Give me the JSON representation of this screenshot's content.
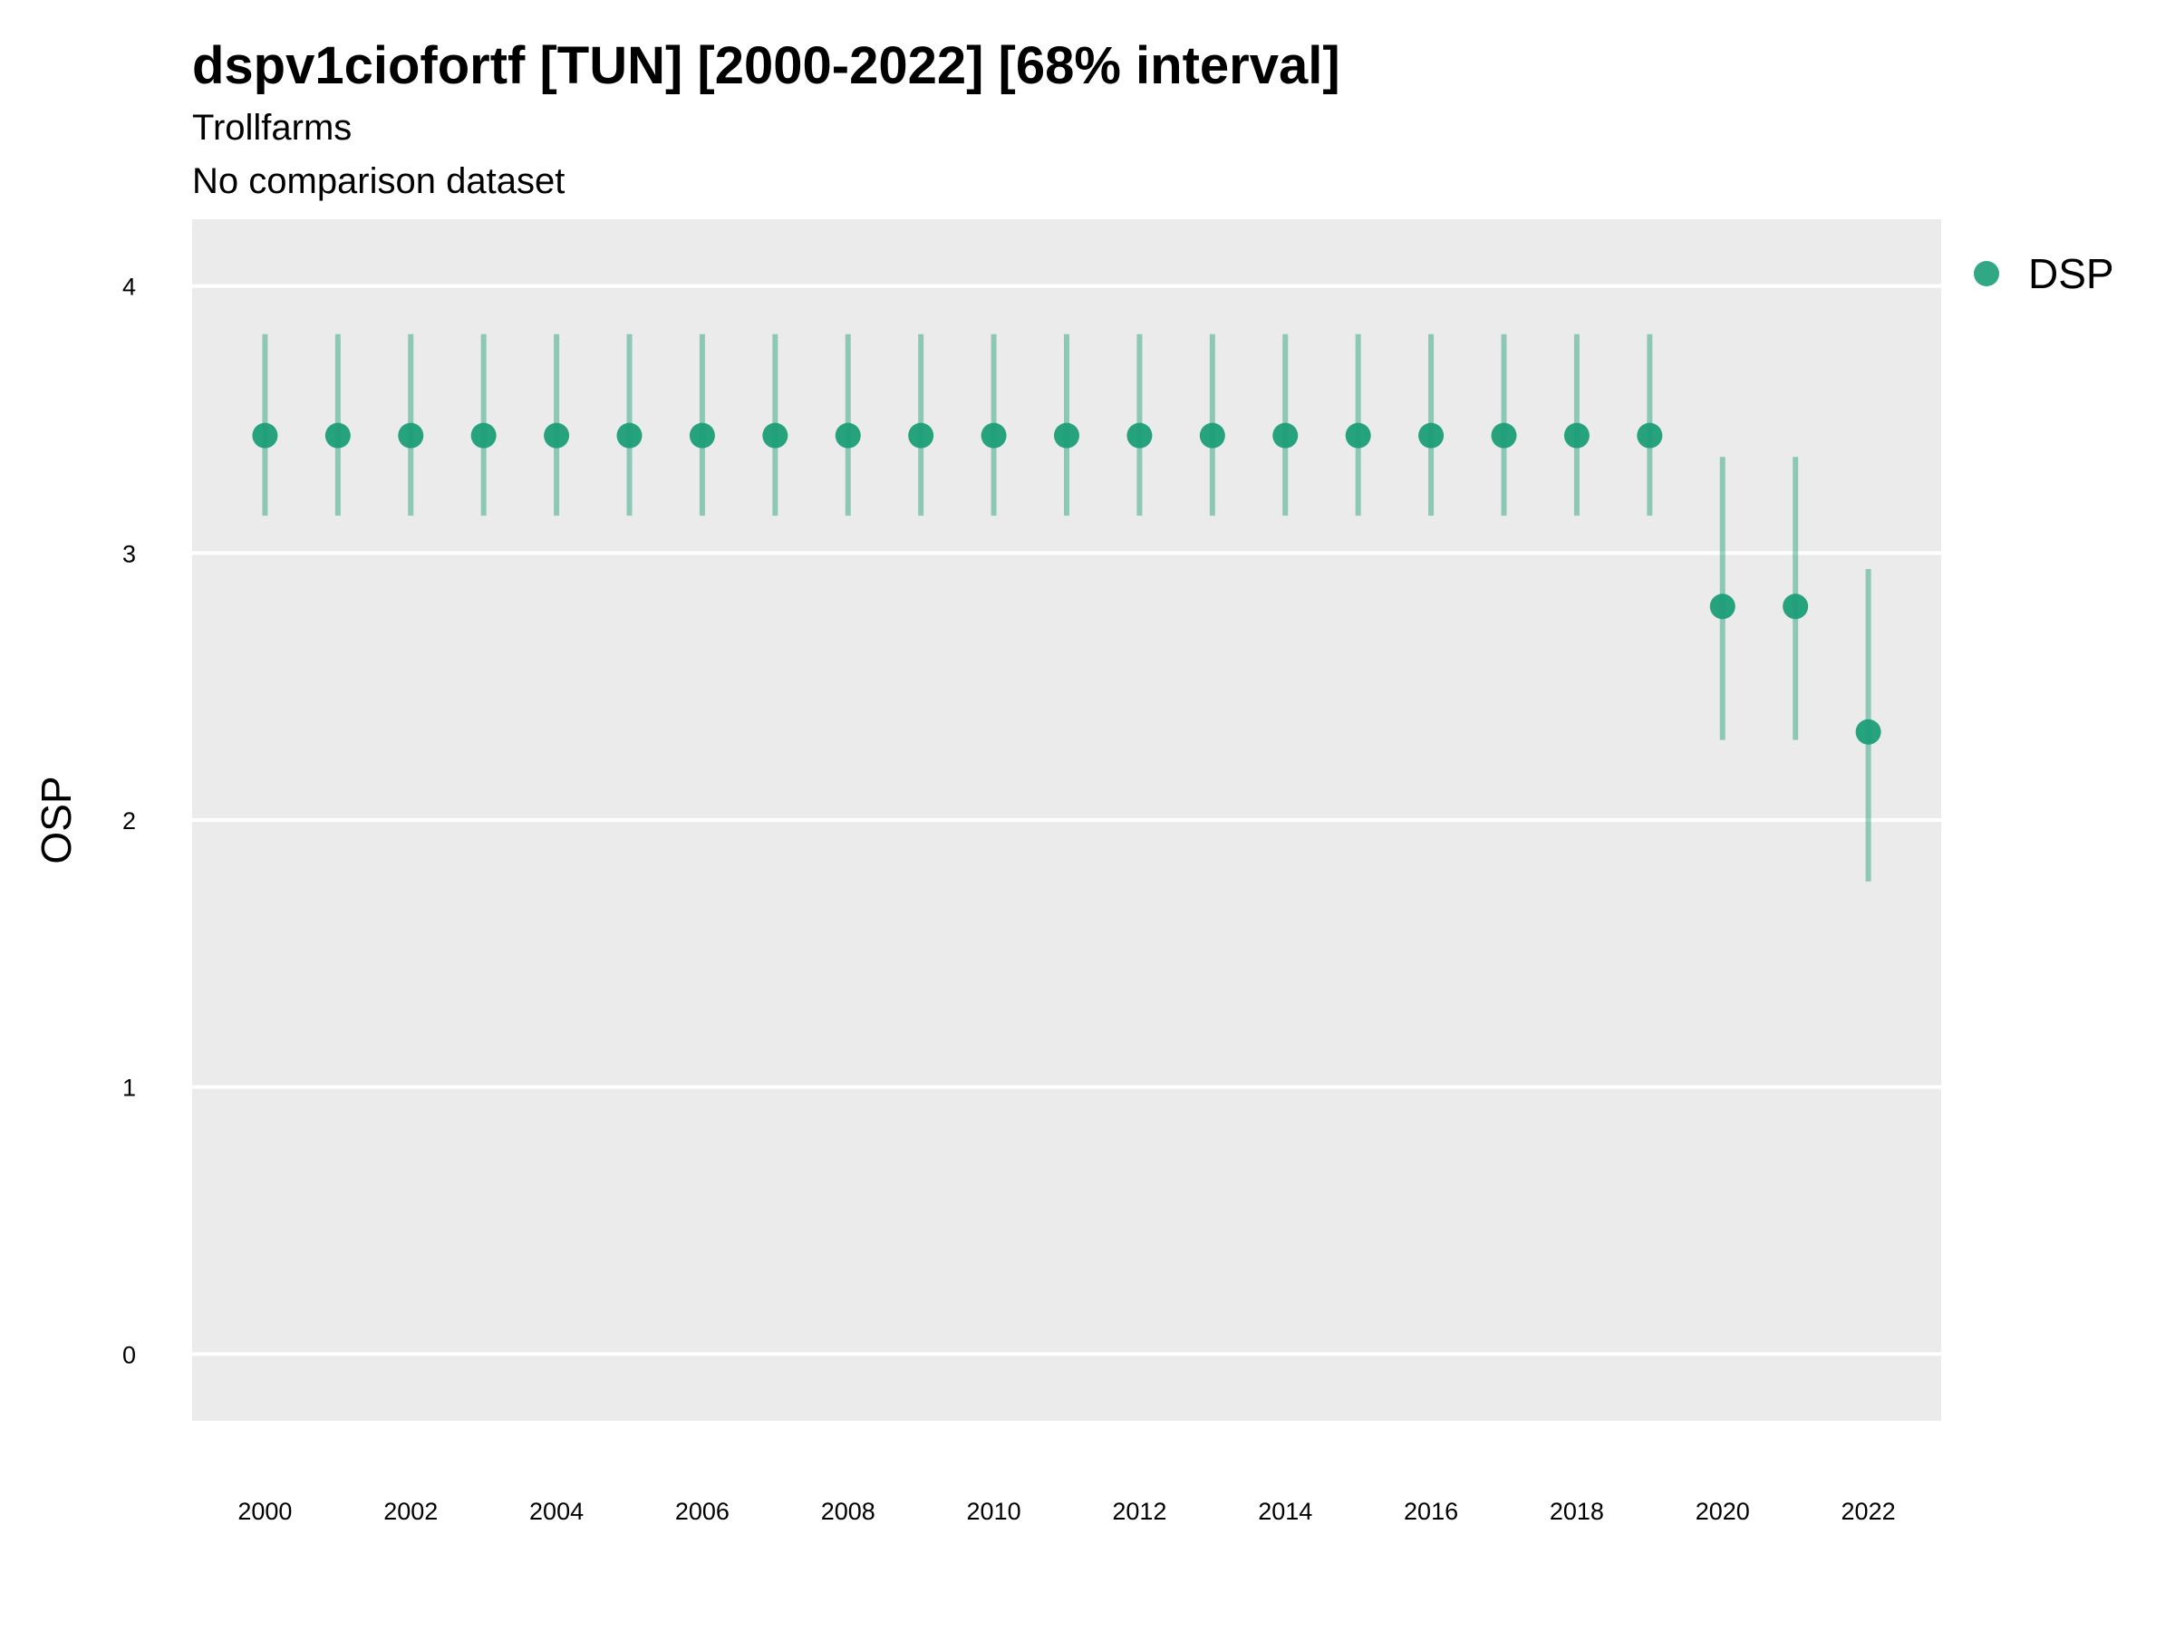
{
  "chart_data": {
    "type": "scatter",
    "title": "dspv1ciofortf [TUN] [2000-2022] [68% interval]",
    "subtitle_lines": [
      "Trollfarms",
      "No comparison dataset"
    ],
    "xlabel": "",
    "ylabel": "OSP",
    "x_ticks": [
      "2000",
      "2002",
      "2004",
      "2006",
      "2008",
      "2010",
      "2012",
      "2014",
      "2016",
      "2018",
      "2020",
      "2022"
    ],
    "y_ticks": [
      "0",
      "1",
      "2",
      "3",
      "4"
    ],
    "xlim": [
      1999,
      2023
    ],
    "ylim": [
      -0.25,
      4.25
    ],
    "grid": true,
    "legend_position": "right",
    "series": [
      {
        "name": "DSP",
        "color": "#1b9e77",
        "x": [
          2000,
          2001,
          2002,
          2003,
          2004,
          2005,
          2006,
          2007,
          2008,
          2009,
          2010,
          2011,
          2012,
          2013,
          2014,
          2015,
          2016,
          2017,
          2018,
          2019,
          2020,
          2021,
          2022
        ],
        "y": [
          3.44,
          3.44,
          3.44,
          3.44,
          3.44,
          3.44,
          3.44,
          3.44,
          3.44,
          3.44,
          3.44,
          3.44,
          3.44,
          3.44,
          3.44,
          3.44,
          3.44,
          3.44,
          3.44,
          3.44,
          2.8,
          2.8,
          2.33
        ],
        "lower": [
          3.14,
          3.14,
          3.14,
          3.14,
          3.14,
          3.14,
          3.14,
          3.14,
          3.14,
          3.14,
          3.14,
          3.14,
          3.14,
          3.14,
          3.14,
          3.14,
          3.14,
          3.14,
          3.14,
          3.14,
          2.3,
          2.3,
          1.77
        ],
        "upper": [
          3.82,
          3.82,
          3.82,
          3.82,
          3.82,
          3.82,
          3.82,
          3.82,
          3.82,
          3.82,
          3.82,
          3.82,
          3.82,
          3.82,
          3.82,
          3.82,
          3.82,
          3.82,
          3.82,
          3.82,
          3.36,
          3.36,
          2.94
        ]
      }
    ]
  }
}
